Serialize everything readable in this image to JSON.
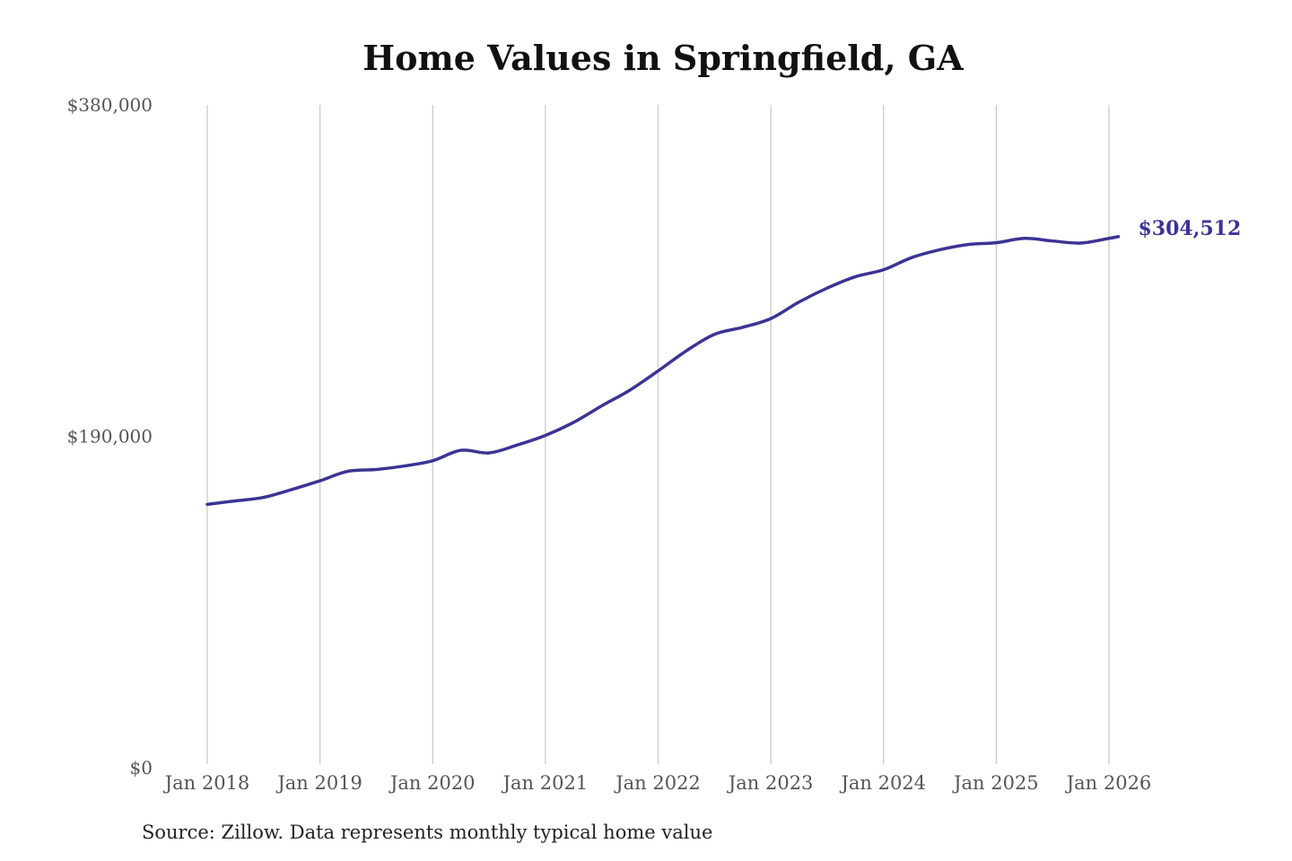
{
  "chart_data": {
    "type": "line",
    "title": "Home Values in Springfield, GA",
    "source": "Source: Zillow. Data represents monthly typical home value",
    "xlabel": "",
    "ylabel": "",
    "ylim": [
      0,
      380000
    ],
    "y_ticks": [
      {
        "value": 0,
        "label": "$0"
      },
      {
        "value": 190000,
        "label": "$190,000"
      },
      {
        "value": 380000,
        "label": "$380,000"
      }
    ],
    "x_ticks": [
      {
        "date": "2018-01",
        "label": "Jan 2018"
      },
      {
        "date": "2019-01",
        "label": "Jan 2019"
      },
      {
        "date": "2020-01",
        "label": "Jan 2020"
      },
      {
        "date": "2021-01",
        "label": "Jan 2021"
      },
      {
        "date": "2022-01",
        "label": "Jan 2022"
      },
      {
        "date": "2023-01",
        "label": "Jan 2023"
      },
      {
        "date": "2024-01",
        "label": "Jan 2024"
      },
      {
        "date": "2025-01",
        "label": "Jan 2025"
      },
      {
        "date": "2026-01",
        "label": "Jan 2026"
      }
    ],
    "grid": "vertical",
    "line_color": "#3b3494",
    "end_label": "$304,512",
    "series": [
      {
        "x": [
          "2018-01",
          "2018-04",
          "2018-07",
          "2018-10",
          "2019-01",
          "2019-04",
          "2019-07",
          "2019-10",
          "2020-01",
          "2020-04",
          "2020-07",
          "2020-10",
          "2021-01",
          "2021-04",
          "2021-07",
          "2021-10",
          "2022-01",
          "2022-04",
          "2022-07",
          "2022-10",
          "2023-01",
          "2023-04",
          "2023-07",
          "2023-10",
          "2024-01",
          "2024-04",
          "2024-07",
          "2024-10",
          "2025-01",
          "2025-04",
          "2025-07",
          "2025-10",
          "2026-01",
          "2026-02"
        ],
        "y": [
          151000,
          153000,
          155000,
          159500,
          164500,
          170000,
          171000,
          173000,
          176000,
          182000,
          180500,
          185000,
          190500,
          198000,
          207500,
          216500,
          227500,
          239000,
          248500,
          252500,
          257500,
          267000,
          275000,
          281500,
          285500,
          292500,
          297000,
          300000,
          301000,
          303500,
          302000,
          300800,
          303500,
          304512
        ]
      }
    ]
  }
}
